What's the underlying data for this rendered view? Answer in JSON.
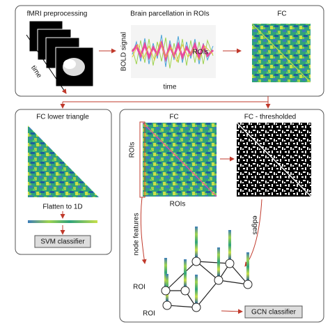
{
  "top": {
    "preprocessing": {
      "title": "fMRI preprocessing",
      "axis": "time"
    },
    "parcellation": {
      "title": "Brain parcellation in ROIs",
      "y_label": "BOLD signal",
      "series_label": "ROIs",
      "x_label": "time"
    },
    "fc": {
      "title": "FC"
    }
  },
  "left": {
    "title": "FC lower triangle",
    "step": "Flatten to 1D",
    "classifier": "SVM classifier"
  },
  "right": {
    "fc": {
      "title": "FC",
      "y_label": "ROIs",
      "x_label": "ROIs"
    },
    "thresholded": {
      "title": "FC - thresholded"
    },
    "node_features": "node features",
    "edges": "edges",
    "roi_labels": [
      "ROI",
      "ROI"
    ],
    "classifier": "GCN classifier"
  }
}
